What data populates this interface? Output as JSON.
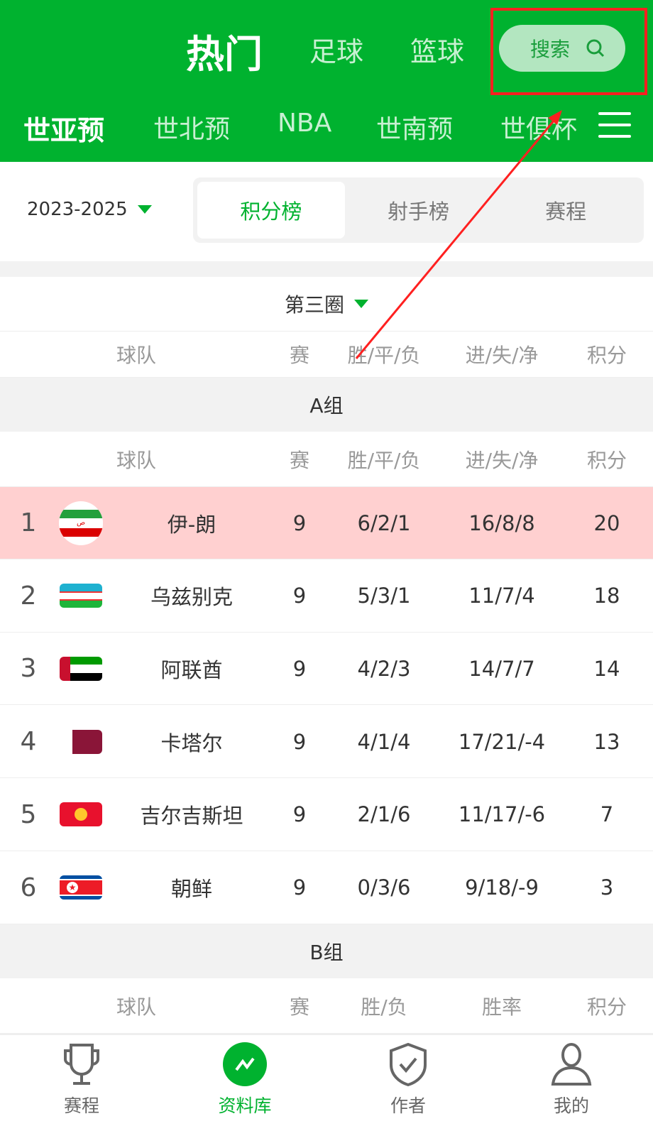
{
  "header": {
    "top_tabs": [
      "热门",
      "足球",
      "篮球"
    ],
    "active_top_tab": "热门",
    "search_label": "搜索",
    "leagues": [
      "世亚预",
      "世北预",
      "NBA",
      "世南预",
      "世俱杯"
    ],
    "active_league": "世亚预"
  },
  "filter": {
    "season": "2023-2025",
    "segments": [
      "积分榜",
      "射手榜",
      "赛程"
    ],
    "active_segment": "积分榜"
  },
  "round": "第三圈",
  "header_cols": {
    "team": "球队",
    "played": "赛",
    "wdl": "胜/平/负",
    "goals": "进/失/净",
    "points": "积分"
  },
  "groups": [
    {
      "name": "A组",
      "header": {
        "team": "球队",
        "played": "赛",
        "wdl": "胜/平/负",
        "goals": "进/失/净",
        "points": "积分"
      },
      "teams": [
        {
          "rank": "1",
          "name": "伊-朗",
          "flag": "iran-flag",
          "played": "9",
          "wdl": "6/2/1",
          "goals": "16/8/8",
          "points": "20",
          "highlighted": true
        },
        {
          "rank": "2",
          "name": "乌兹别克",
          "flag": "uzbekistan-flag",
          "played": "9",
          "wdl": "5/3/1",
          "goals": "11/7/4",
          "points": "18"
        },
        {
          "rank": "3",
          "name": "阿联酋",
          "flag": "uae-flag",
          "played": "9",
          "wdl": "4/2/3",
          "goals": "14/7/7",
          "points": "14"
        },
        {
          "rank": "4",
          "name": "卡塔尔",
          "flag": "qatar-flag",
          "played": "9",
          "wdl": "4/1/4",
          "goals": "17/21/-4",
          "points": "13"
        },
        {
          "rank": "5",
          "name": "吉尔吉斯坦",
          "flag": "kyrgyzstan-flag",
          "played": "9",
          "wdl": "2/1/6",
          "goals": "11/17/-6",
          "points": "7"
        },
        {
          "rank": "6",
          "name": "朝鲜",
          "flag": "north-korea-flag",
          "played": "9",
          "wdl": "0/3/6",
          "goals": "9/18/-9",
          "points": "3"
        }
      ]
    },
    {
      "name": "B组",
      "header": {
        "team": "球队",
        "played": "赛",
        "wdl": "胜/负",
        "goals": "胜率",
        "points": "积分"
      }
    }
  ],
  "bottom_nav": [
    {
      "label": "赛程",
      "icon": "trophy-icon"
    },
    {
      "label": "资料库",
      "icon": "chart-icon",
      "active": true
    },
    {
      "label": "作者",
      "icon": "shield-check-icon"
    },
    {
      "label": "我的",
      "icon": "user-icon"
    }
  ],
  "colors": {
    "brand": "#00b22f",
    "highlight_row": "#ffd0d0",
    "annotation": "#ff2020"
  }
}
